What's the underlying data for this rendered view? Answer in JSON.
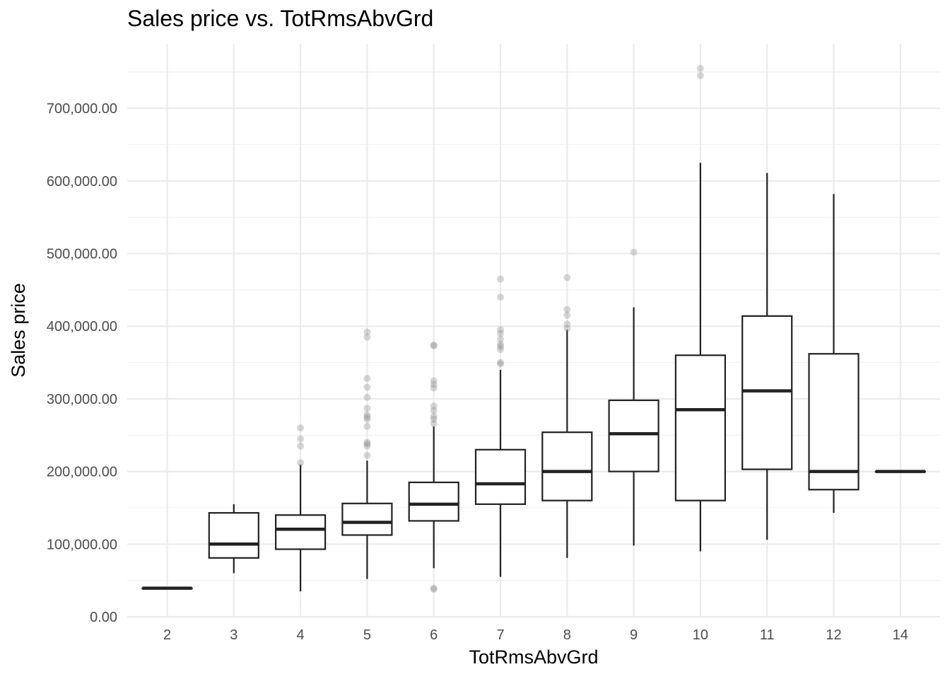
{
  "chart_data": {
    "type": "boxplot",
    "title": "Sales price vs. TotRmsAbvGrd",
    "xlabel": "TotRmsAbvGrd",
    "ylabel": "Sales price",
    "ylim": [
      0,
      760000
    ],
    "yticks": [
      0,
      100000,
      200000,
      300000,
      400000,
      500000,
      600000,
      700000
    ],
    "ytick_labels": [
      "0.00",
      "100,000.00",
      "200,000.00",
      "300,000.00",
      "400,000.00",
      "500,000.00",
      "600,000.00",
      "700,000.00"
    ],
    "grid": true,
    "legend": "none",
    "box_color": "#222222",
    "outlier_color": "#8c8c8c",
    "categories": [
      "2",
      "3",
      "4",
      "5",
      "6",
      "7",
      "8",
      "9",
      "10",
      "11",
      "12",
      "14"
    ],
    "boxes": [
      {
        "category": "2",
        "lower_whisker": 39300,
        "q1": 39300,
        "median": 39300,
        "q3": 39300,
        "upper_whisker": 39300,
        "outliers": []
      },
      {
        "category": "3",
        "lower_whisker": 60000,
        "q1": 81000,
        "median": 100000,
        "q3": 143000,
        "upper_whisker": 155000,
        "outliers": []
      },
      {
        "category": "4",
        "lower_whisker": 34900,
        "q1": 93000,
        "median": 120500,
        "q3": 140000,
        "upper_whisker": 209500,
        "outliers": [
          212000,
          235000,
          245000,
          260000
        ]
      },
      {
        "category": "5",
        "lower_whisker": 52000,
        "q1": 112500,
        "median": 130000,
        "q3": 156000,
        "upper_whisker": 215000,
        "outliers": [
          222000,
          235000,
          238000,
          240000,
          262000,
          272000,
          275000,
          278000,
          287000,
          302000,
          316000,
          328000,
          385000,
          392000
        ]
      },
      {
        "category": "6",
        "lower_whisker": 67000,
        "q1": 132000,
        "median": 155000,
        "q3": 185000,
        "upper_whisker": 262000,
        "outliers": [
          37900,
          39300,
          266000,
          272000,
          276000,
          284000,
          290000,
          315000,
          320000,
          325000,
          373000,
          374000
        ]
      },
      {
        "category": "7",
        "lower_whisker": 55000,
        "q1": 155000,
        "median": 183000,
        "q3": 230000,
        "upper_whisker": 340000,
        "outliers": [
          348000,
          350000,
          368000,
          372000,
          375000,
          382000,
          390000,
          395000,
          440000,
          465000
        ]
      },
      {
        "category": "8",
        "lower_whisker": 81000,
        "q1": 160000,
        "median": 200000,
        "q3": 254000,
        "upper_whisker": 395000,
        "outliers": [
          397000,
          403000,
          415000,
          423000,
          467000
        ]
      },
      {
        "category": "9",
        "lower_whisker": 98000,
        "q1": 200000,
        "median": 252000,
        "q3": 298000,
        "upper_whisker": 426000,
        "outliers": [
          502000
        ]
      },
      {
        "category": "10",
        "lower_whisker": 90000,
        "q1": 160000,
        "median": 285000,
        "q3": 360000,
        "upper_whisker": 625000,
        "outliers": [
          745000,
          755000
        ]
      },
      {
        "category": "11",
        "lower_whisker": 106000,
        "q1": 203000,
        "median": 311000,
        "q3": 414000,
        "upper_whisker": 611000,
        "outliers": []
      },
      {
        "category": "12",
        "lower_whisker": 143000,
        "q1": 175000,
        "median": 200000,
        "q3": 362000,
        "upper_whisker": 582000,
        "outliers": []
      },
      {
        "category": "14",
        "lower_whisker": 200000,
        "q1": 200000,
        "median": 200000,
        "q3": 200000,
        "upper_whisker": 200000,
        "outliers": []
      }
    ]
  }
}
